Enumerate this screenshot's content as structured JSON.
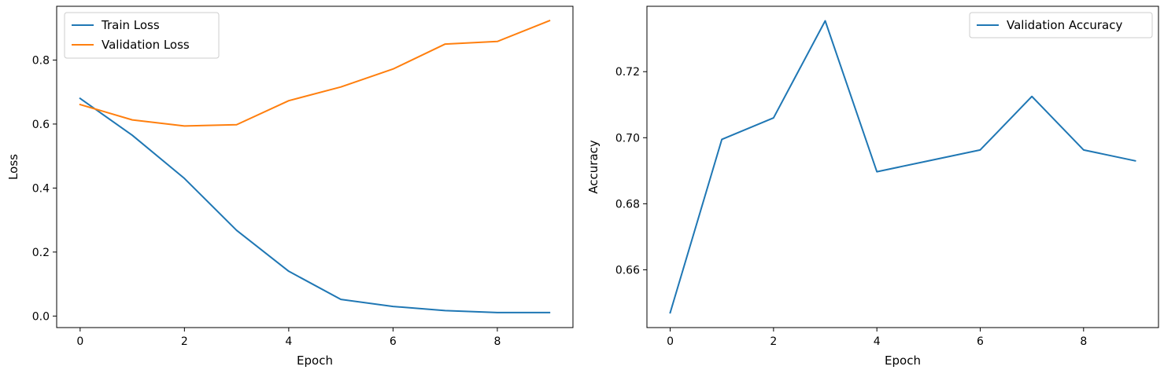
{
  "chart_data": [
    {
      "type": "line",
      "xlabel": "Epoch",
      "ylabel": "Loss",
      "x": [
        0,
        1,
        2,
        3,
        4,
        5,
        6,
        7,
        8,
        9
      ],
      "xlim": [
        -0.45,
        9.45
      ],
      "ylim": [
        -0.036,
        0.968
      ],
      "xticks": [
        0,
        2,
        4,
        6,
        8
      ],
      "yticks": [
        0.0,
        0.2,
        0.4,
        0.6,
        0.8
      ],
      "ytick_decimals": 1,
      "grid": false,
      "legend_position": "upper left",
      "series": [
        {
          "name": "Train Loss",
          "color": "#1f77b4",
          "values": [
            0.68,
            0.565,
            0.43,
            0.268,
            0.14,
            0.052,
            0.03,
            0.017,
            0.011,
            0.011
          ]
        },
        {
          "name": "Validation Loss",
          "color": "#ff7f0e",
          "values": [
            0.661,
            0.613,
            0.594,
            0.598,
            0.673,
            0.716,
            0.772,
            0.85,
            0.858,
            0.923
          ]
        }
      ]
    },
    {
      "type": "line",
      "xlabel": "Epoch",
      "ylabel": "Accuracy",
      "x": [
        0,
        1,
        2,
        3,
        4,
        5,
        6,
        7,
        8,
        9
      ],
      "xlim": [
        -0.45,
        9.45
      ],
      "ylim": [
        0.6425,
        0.7398
      ],
      "xticks": [
        0,
        2,
        4,
        6,
        8
      ],
      "yticks": [
        0.66,
        0.68,
        0.7,
        0.72
      ],
      "ytick_decimals": 2,
      "grid": false,
      "legend_position": "upper right",
      "series": [
        {
          "name": "Validation Accuracy",
          "color": "#1f77b4",
          "values": [
            0.647,
            0.6995,
            0.706,
            0.7354,
            0.6897,
            0.693,
            0.6963,
            0.7125,
            0.6963,
            0.693
          ]
        }
      ]
    }
  ]
}
